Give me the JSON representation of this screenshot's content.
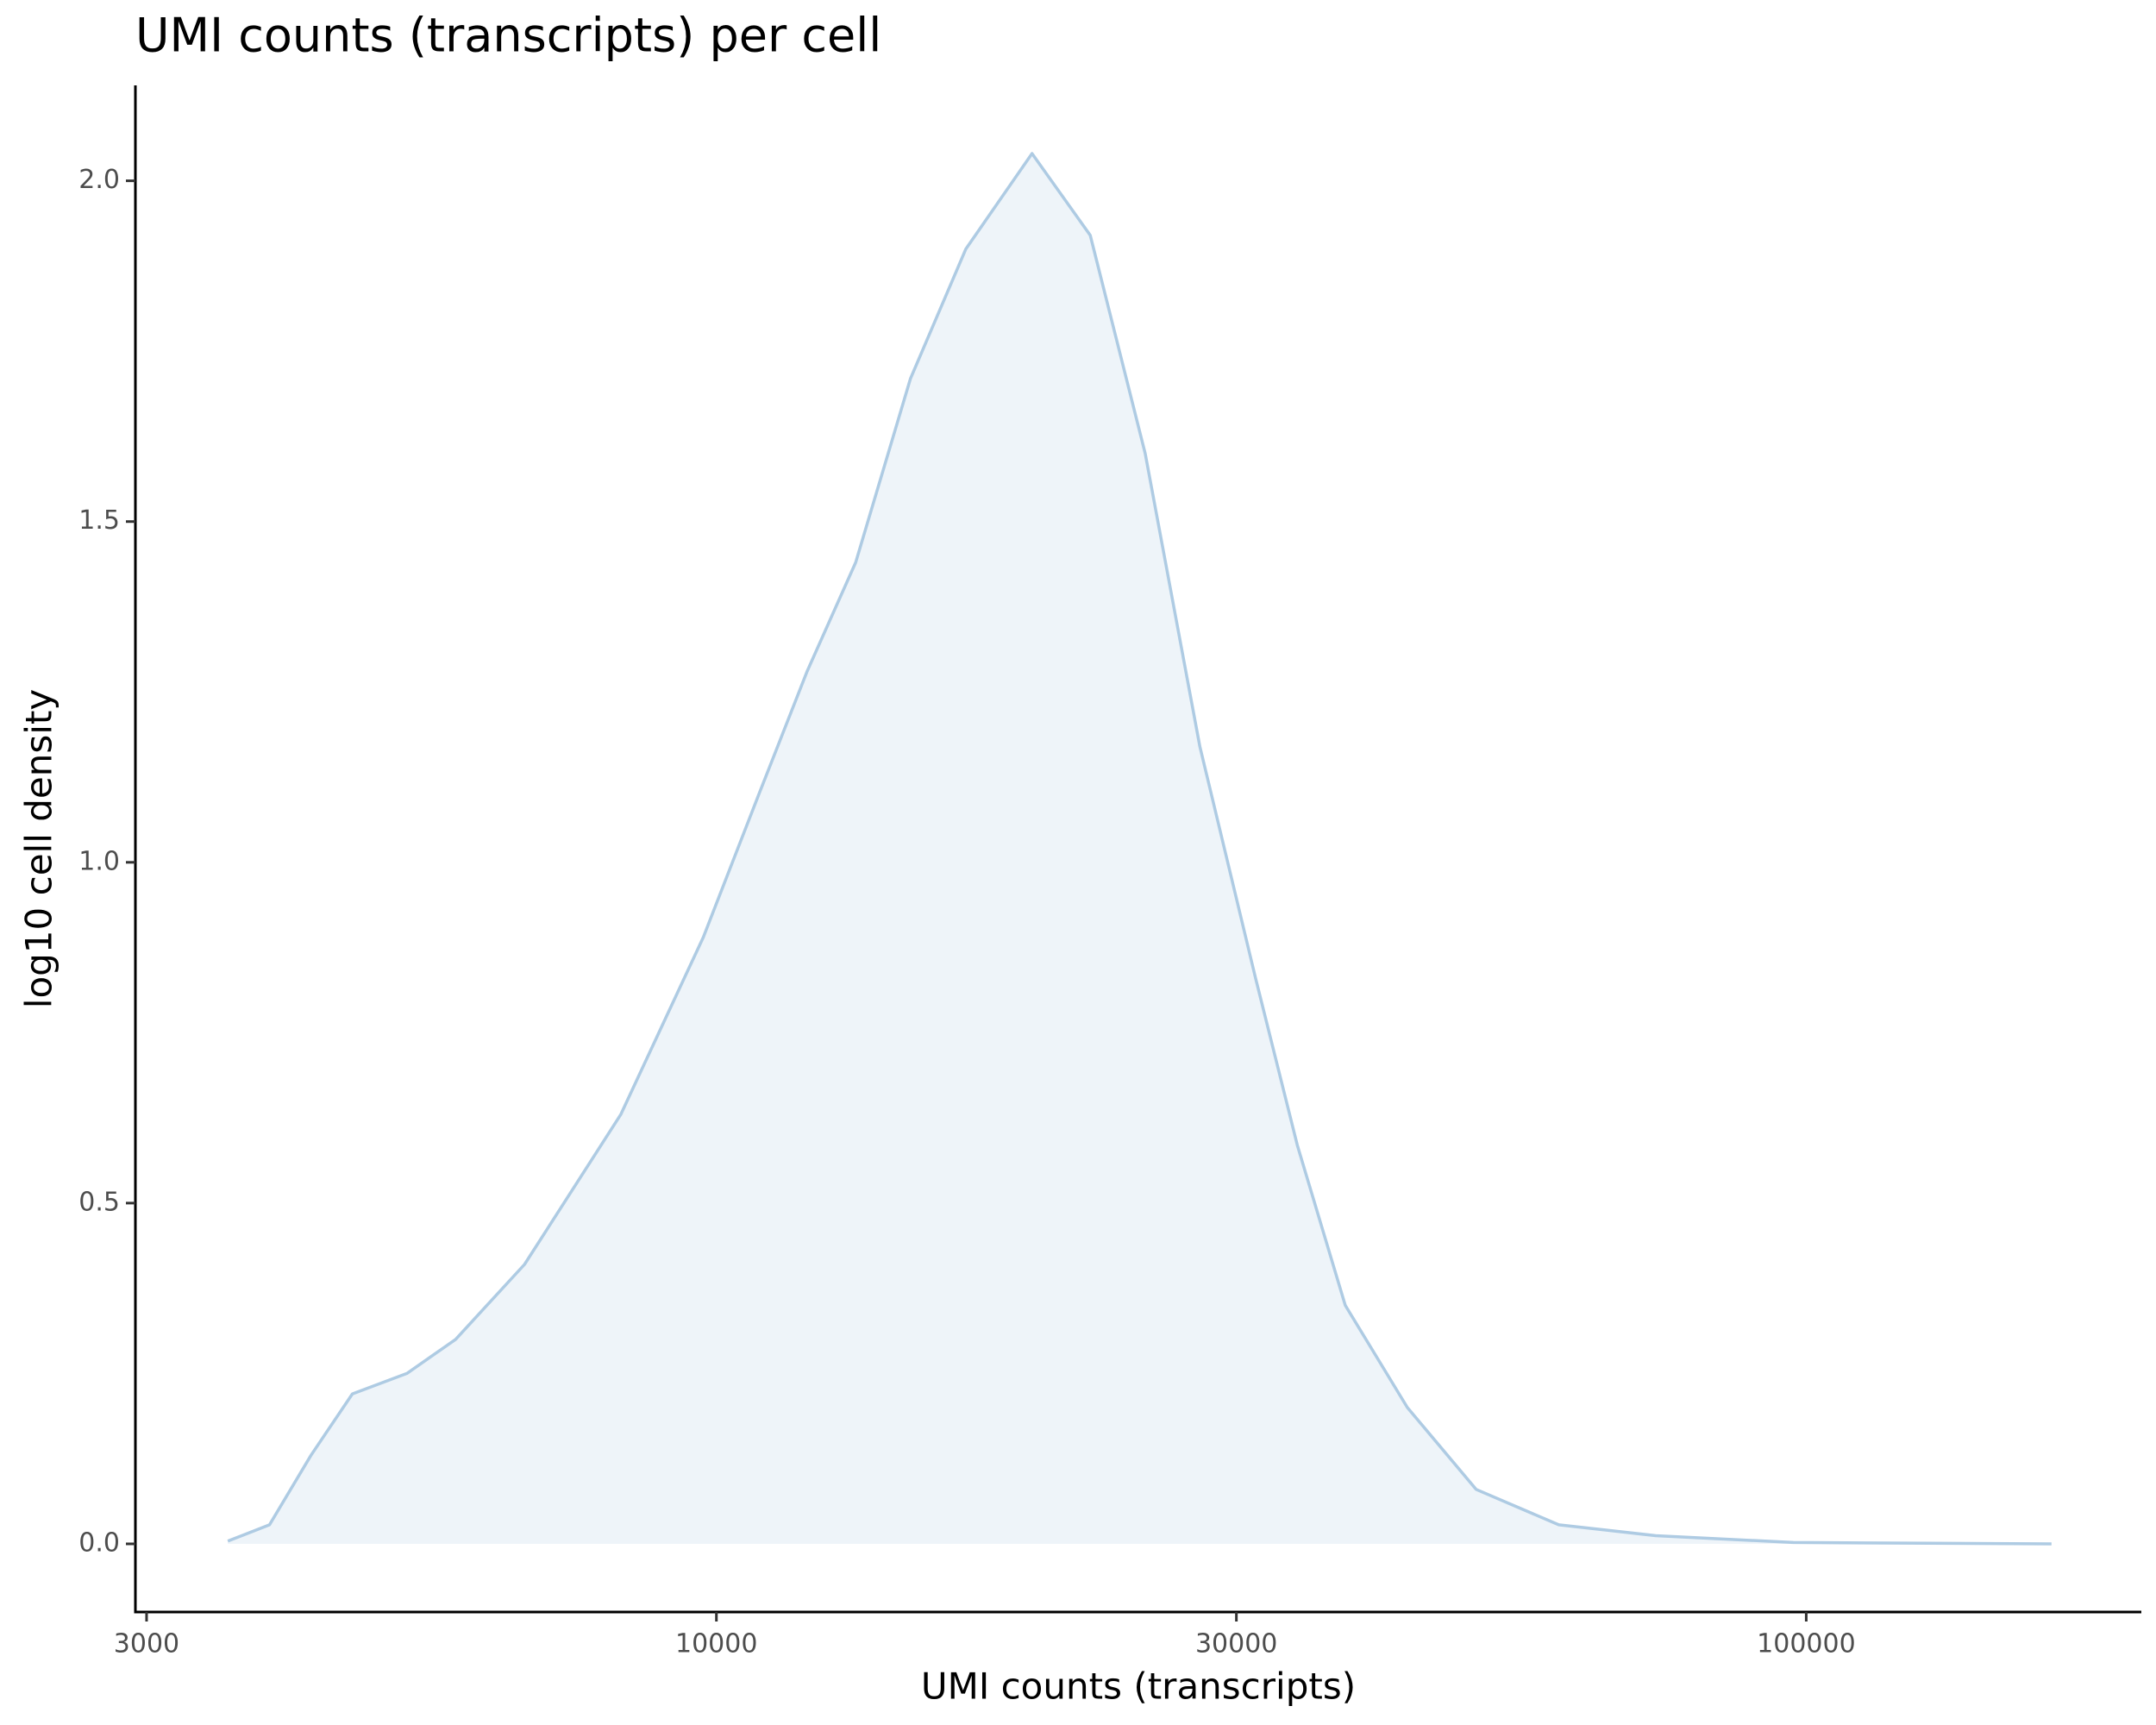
{
  "chart_data": {
    "type": "density",
    "title": "UMI counts (transcripts) per cell",
    "x_label": "UMI counts (transcripts)",
    "y_label": "log10 cell density",
    "x_log": true,
    "x": [
      3562,
      3890,
      4246,
      4634,
      5200,
      5764,
      6667,
      8170,
      9727,
      10940,
      12110,
      13420,
      15070,
      16940,
      19480,
      22030,
      24740,
      27770,
      31240,
      34120,
      37760,
      43050,
      49780,
      59290,
      72780,
      97300,
      167900
    ],
    "values": [
      0.004,
      0.028,
      0.13,
      0.22,
      0.25,
      0.3,
      0.41,
      0.63,
      0.89,
      1.1,
      1.28,
      1.44,
      1.71,
      1.9,
      2.04,
      1.92,
      1.6,
      1.17,
      0.83,
      0.585,
      0.35,
      0.2,
      0.08,
      0.028,
      0.012,
      0.002,
      0
    ],
    "color": "#aecbe3",
    "fill": "#eef4f9",
    "xlim": [
      2930,
      203000
    ],
    "xticks": [
      3000,
      10000,
      30000,
      100000
    ],
    "ylim": [
      -0.1,
      2.14
    ],
    "yticks": [
      {
        "value": 0,
        "label": "0.0"
      },
      0.5,
      {
        "value": 1,
        "label": "1.0"
      },
      1.5,
      {
        "value": 2,
        "label": "2.0"
      }
    ]
  }
}
